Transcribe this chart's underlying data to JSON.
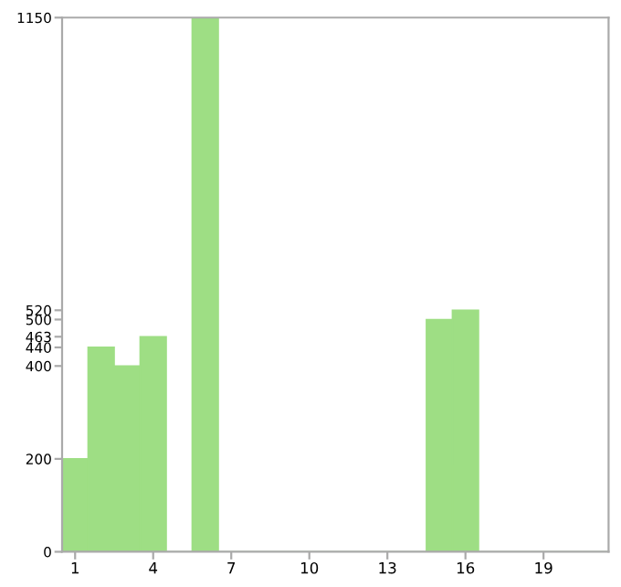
{
  "chart_data": {
    "type": "bar",
    "categories": [
      "1",
      null,
      null,
      "4",
      null,
      null,
      "7",
      null,
      null,
      "10",
      null,
      null,
      "13",
      null,
      null,
      "16",
      null,
      null,
      "19",
      null,
      null
    ],
    "values": [
      200,
      440,
      400,
      463,
      0,
      1150,
      0,
      0,
      0,
      0,
      0,
      0,
      0,
      0,
      500,
      520,
      0,
      0,
      0,
      0,
      0
    ],
    "color": "#9ede84",
    "ylim": [
      0,
      1150
    ],
    "yticks": [
      0,
      200,
      400,
      440,
      463,
      500,
      520,
      1150
    ],
    "grid": false,
    "legend": false
  }
}
